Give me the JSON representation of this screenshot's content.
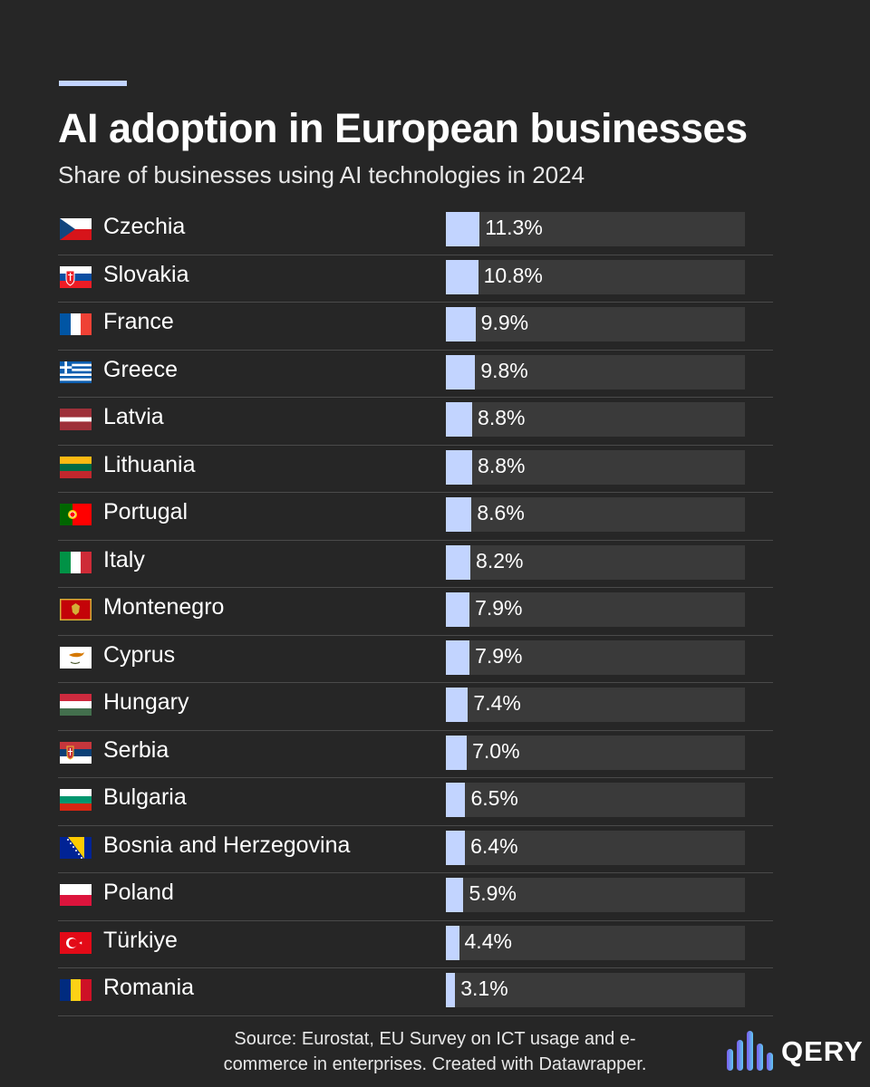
{
  "chart_data": {
    "type": "bar",
    "title": "AI adoption in European businesses",
    "subtitle": "Share of businesses using AI technologies in 2024",
    "xlim": [
      0,
      100
    ],
    "unit": "%",
    "categories": [
      "Czechia",
      "Slovakia",
      "France",
      "Greece",
      "Latvia",
      "Lithuania",
      "Portugal",
      "Italy",
      "Montenegro",
      "Cyprus",
      "Hungary",
      "Serbia",
      "Bulgaria",
      "Bosnia and Herzegovina",
      "Poland",
      "Türkiye",
      "Romania"
    ],
    "values": [
      11.3,
      10.8,
      9.9,
      9.8,
      8.8,
      8.8,
      8.6,
      8.2,
      7.9,
      7.9,
      7.4,
      7.0,
      6.5,
      6.4,
      5.9,
      4.4,
      3.1
    ],
    "labels": [
      "11.3%",
      "10.8%",
      "9.9%",
      "9.8%",
      "8.8%",
      "8.8%",
      "8.6%",
      "8.2%",
      "7.9%",
      "7.9%",
      "7.4%",
      "7.0%",
      "6.5%",
      "6.4%",
      "5.9%",
      "4.4%",
      "3.1%"
    ],
    "flags": [
      "czechia-flag-icon",
      "slovakia-flag-icon",
      "france-flag-icon",
      "greece-flag-icon",
      "latvia-flag-icon",
      "lithuania-flag-icon",
      "portugal-flag-icon",
      "italy-flag-icon",
      "montenegro-flag-icon",
      "cyprus-flag-icon",
      "hungary-flag-icon",
      "serbia-flag-icon",
      "bulgaria-flag-icon",
      "bosnia-and-herzegovina-flag-icon",
      "poland-flag-icon",
      "turkiye-flag-icon",
      "romania-flag-icon"
    ],
    "bar_color": "#c2d4ff",
    "track_color": "#3a3a3a"
  },
  "footer": {
    "source_line1": "Source: Eurostat, EU Survey on ICT usage and e-",
    "source_line2": "commerce in enterprises. Created with Datawrapper."
  },
  "brand": {
    "name": "QERY",
    "logo_icon": "bar-chart-logo-icon"
  },
  "colors": {
    "background": "#262626",
    "accent": "#c2d4ff"
  }
}
